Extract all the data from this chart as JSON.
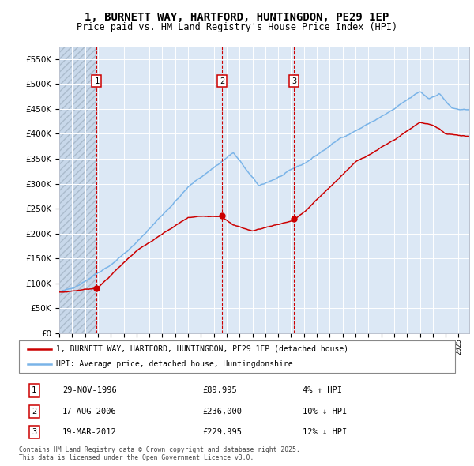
{
  "title": "1, BURNETT WAY, HARTFORD, HUNTINGDON, PE29 1EP",
  "subtitle": "Price paid vs. HM Land Registry's House Price Index (HPI)",
  "ylim": [
    0,
    575000
  ],
  "yticks": [
    0,
    50000,
    100000,
    150000,
    200000,
    250000,
    300000,
    350000,
    400000,
    450000,
    500000,
    550000
  ],
  "xlim_start": 1994.0,
  "xlim_end": 2025.83,
  "sale_dates": [
    1996.91,
    2006.63,
    2012.22
  ],
  "sale_prices": [
    89995,
    236000,
    229995
  ],
  "sale_labels": [
    "1",
    "2",
    "3"
  ],
  "hpi_color": "#7ab4e8",
  "price_color": "#cc0000",
  "dashed_color": "#cc0000",
  "bg_plot": "#dce8f5",
  "bg_hatch": "#c8d8ea",
  "grid_color": "#ffffff",
  "legend_label_price": "1, BURNETT WAY, HARTFORD, HUNTINGDON, PE29 1EP (detached house)",
  "legend_label_hpi": "HPI: Average price, detached house, Huntingdonshire",
  "annotation_1": "29-NOV-1996",
  "annotation_2": "17-AUG-2006",
  "annotation_3": "19-MAR-2012",
  "ann_price_1": "£89,995",
  "ann_price_2": "£236,000",
  "ann_price_3": "£229,995",
  "ann_hpi_1": "4% ↑ HPI",
  "ann_hpi_2": "10% ↓ HPI",
  "ann_hpi_3": "12% ↓ HPI",
  "footer": "Contains HM Land Registry data © Crown copyright and database right 2025.\nThis data is licensed under the Open Government Licence v3.0."
}
